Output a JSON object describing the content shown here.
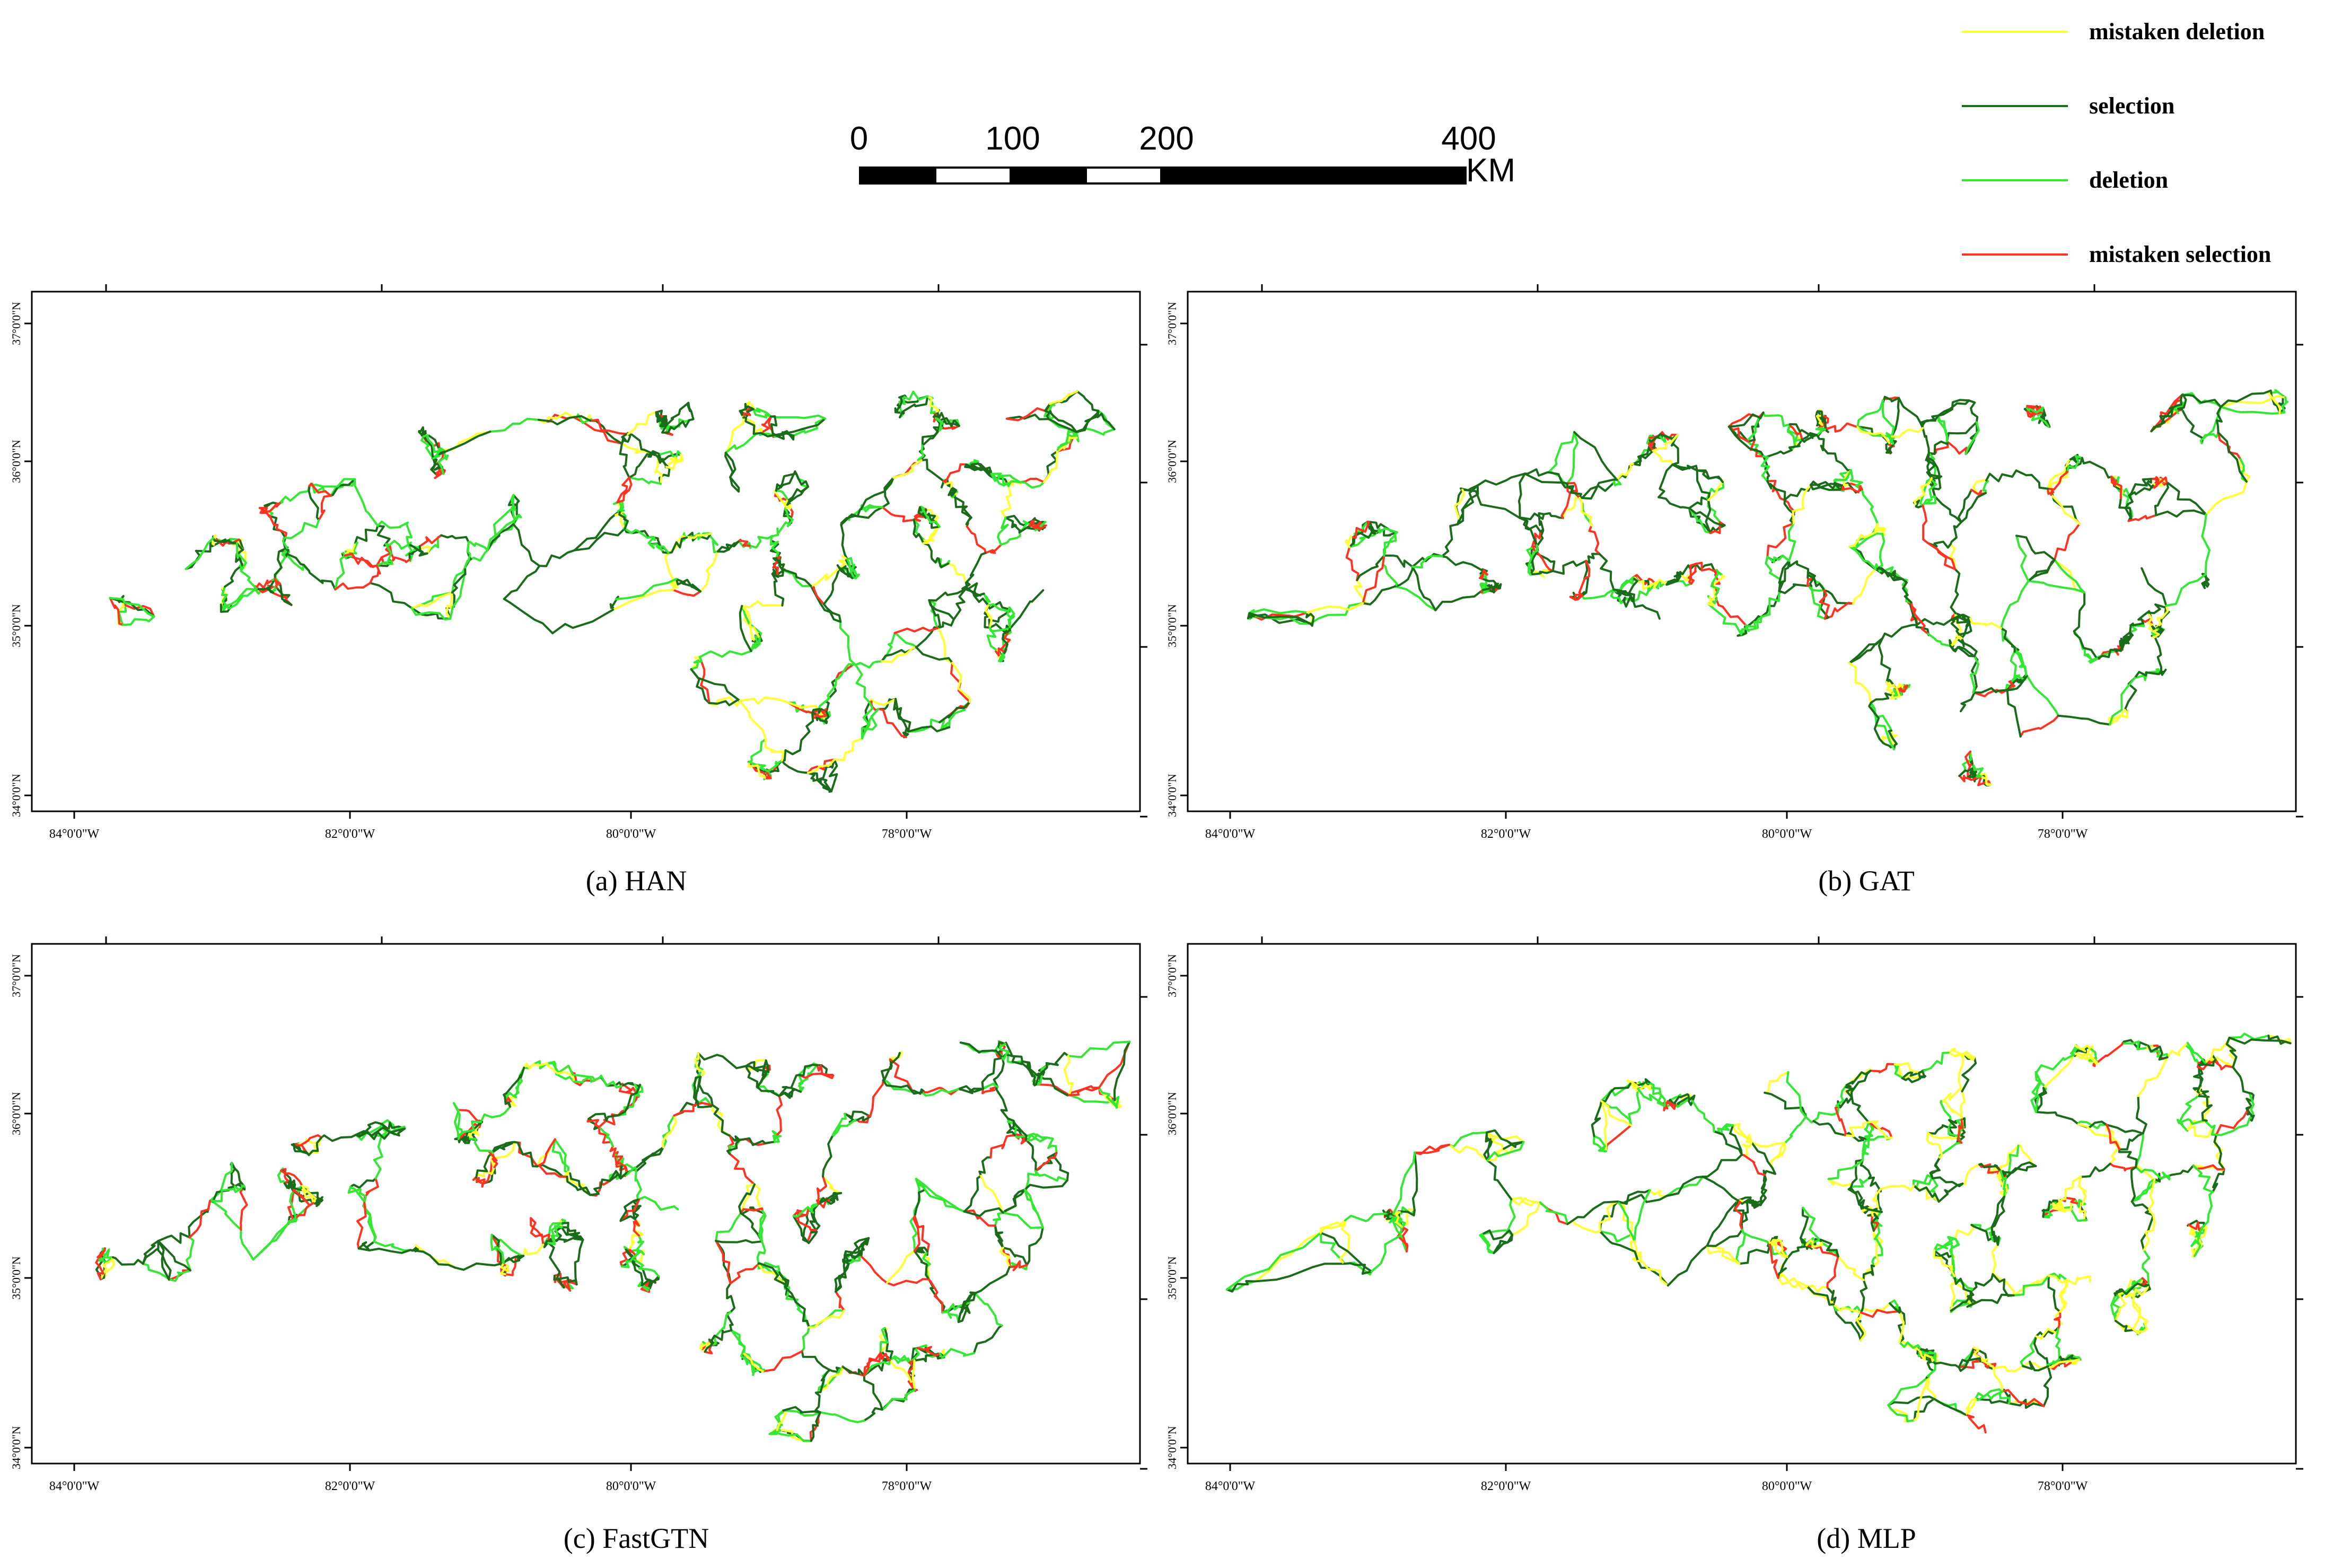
{
  "legend": [
    {
      "label": "mistaken deletion",
      "color": "#ffff33"
    },
    {
      "label": "selection",
      "color": "#1a6b1a"
    },
    {
      "label": "deletion",
      "color": "#33e833"
    },
    {
      "label": "mistaken selection",
      "color": "#ff3322"
    }
  ],
  "scalebar": {
    "ticks": [
      "0",
      "100",
      "200",
      "400"
    ],
    "unit": "KM"
  },
  "map_axes": {
    "lon_labels": [
      "84°0'0\"W",
      "82°0'0\"W",
      "80°0'0\"W",
      "78°0'0\"W"
    ],
    "lat_labels": [
      "37°0'0\"N",
      "36°0'0\"N",
      "35°0'0\"N",
      "34°0'0\"N"
    ]
  },
  "panels": [
    {
      "caption": "(a) HAN",
      "style": "han"
    },
    {
      "caption": "(b) GAT",
      "style": "gat"
    },
    {
      "caption": "(c) FastGTN",
      "style": "fastgtn"
    },
    {
      "caption": "(d) MLP",
      "style": "mlp"
    }
  ]
}
